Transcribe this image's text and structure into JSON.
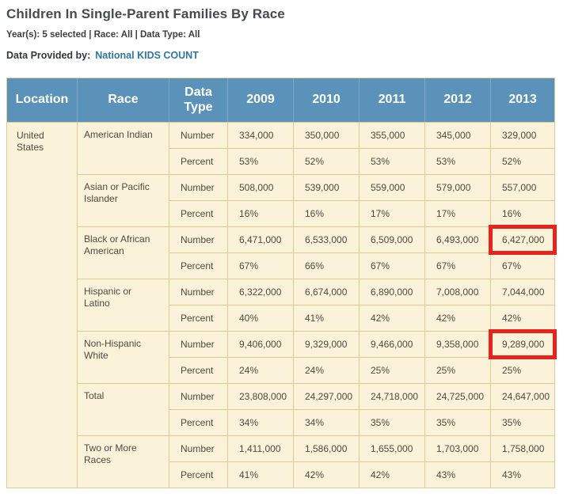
{
  "page": {
    "title": "Children In Single-Parent Families By Race",
    "filter_summary": "Year(s): 5 selected | Race: All | Data Type: All",
    "data_provided_label": "Data Provided by:",
    "data_provided_link": "National KIDS COUNT"
  },
  "colors": {
    "header_bg": "#5b92ba",
    "body_bg": "#faf3d9",
    "grid_border": "#e0ca93",
    "highlight_red": "#e8231b",
    "link_blue": "#2e76a6"
  },
  "table": {
    "columns": [
      "Location",
      "Race",
      "Data Type",
      "2009",
      "2010",
      "2011",
      "2012",
      "2013"
    ],
    "location": "United States",
    "years": [
      "2009",
      "2010",
      "2011",
      "2012",
      "2013"
    ],
    "data_type_labels": {
      "number": "Number",
      "percent": "Percent"
    },
    "groups": [
      {
        "race": "American Indian",
        "number": [
          "334,000",
          "350,000",
          "355,000",
          "345,000",
          "329,000"
        ],
        "percent": [
          "53%",
          "52%",
          "53%",
          "53%",
          "52%"
        ]
      },
      {
        "race": "Asian or Pacific Islander",
        "number": [
          "508,000",
          "539,000",
          "559,000",
          "579,000",
          "557,000"
        ],
        "percent": [
          "16%",
          "16%",
          "17%",
          "17%",
          "16%"
        ]
      },
      {
        "race": "Black or African American",
        "number": [
          "6,471,000",
          "6,533,000",
          "6,509,000",
          "6,493,000",
          "6,427,000"
        ],
        "percent": [
          "67%",
          "66%",
          "67%",
          "67%",
          "67%"
        ],
        "highlight": {
          "data_type": "number",
          "year_index": 4
        }
      },
      {
        "race": "Hispanic or Latino",
        "number": [
          "6,322,000",
          "6,674,000",
          "6,890,000",
          "7,008,000",
          "7,044,000"
        ],
        "percent": [
          "40%",
          "41%",
          "42%",
          "42%",
          "42%"
        ]
      },
      {
        "race": "Non-Hispanic White",
        "number": [
          "9,406,000",
          "9,329,000",
          "9,466,000",
          "9,358,000",
          "9,289,000"
        ],
        "percent": [
          "24%",
          "24%",
          "25%",
          "25%",
          "25%"
        ],
        "highlight": {
          "data_type": "number",
          "year_index": 4
        }
      },
      {
        "race": "Total",
        "number": [
          "23,808,000",
          "24,297,000",
          "24,718,000",
          "24,725,000",
          "24,647,000"
        ],
        "percent": [
          "34%",
          "34%",
          "35%",
          "35%",
          "35%"
        ]
      },
      {
        "race": "Two or More Races",
        "number": [
          "1,411,000",
          "1,586,000",
          "1,655,000",
          "1,703,000",
          "1,758,000"
        ],
        "percent": [
          "41%",
          "42%",
          "42%",
          "43%",
          "43%"
        ]
      }
    ]
  },
  "annotations": {
    "highlighted_cells": [
      {
        "race": "Black or African American",
        "data_type": "Number",
        "year": "2013",
        "value": "6,427,000"
      },
      {
        "race": "Non-Hispanic White",
        "data_type": "Number",
        "year": "2013",
        "value": "9,289,000"
      }
    ]
  }
}
